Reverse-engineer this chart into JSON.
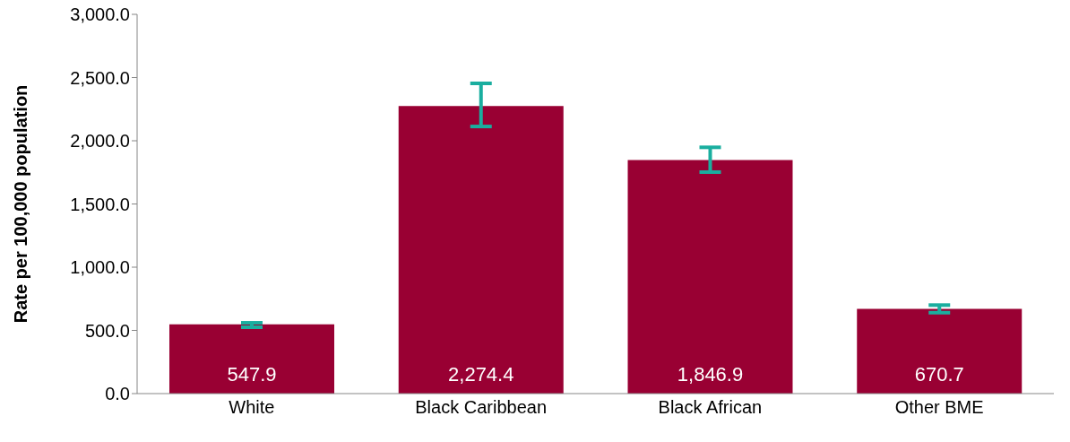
{
  "chart_data": {
    "type": "bar",
    "ylabel": "Rate per 100,000 population",
    "categories": [
      "White",
      "Black Caribbean",
      "Black African",
      "Other BME"
    ],
    "values": [
      547.9,
      2274.4,
      1846.9,
      670.7
    ],
    "errors": [
      [
        525,
        560
      ],
      [
        2113,
        2454
      ],
      [
        1752,
        1948
      ],
      [
        640,
        700
      ]
    ],
    "color": "#990033",
    "value_labels": [
      "547.9",
      "2,274.4",
      "1,846.9",
      "670.7"
    ],
    "ylim": [
      0,
      3000
    ],
    "yticks": [
      {
        "value": 0,
        "label": "0.0"
      },
      {
        "value": 500,
        "label": "500.0"
      },
      {
        "value": 1000,
        "label": "1,000.0"
      },
      {
        "value": 1500,
        "label": "1,500.0"
      },
      {
        "value": 2000,
        "label": "2,000.0"
      },
      {
        "value": 2500,
        "label": "2,500.0"
      },
      {
        "value": 3000,
        "label": "3,000.0"
      }
    ],
    "grid": false,
    "legend": false
  }
}
